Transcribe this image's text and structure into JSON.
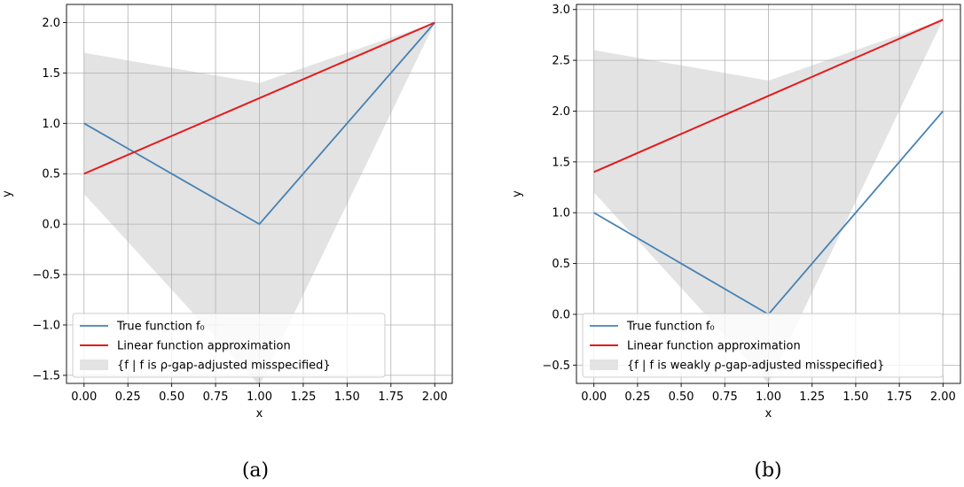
{
  "chart_data": [
    {
      "type": "line",
      "caption": "(a)",
      "xlabel": "x",
      "ylabel": "y",
      "xlim": [
        -0.1,
        2.1
      ],
      "ylim": [
        -1.58,
        2.18
      ],
      "xticks": [
        0.0,
        0.25,
        0.5,
        0.75,
        1.0,
        1.25,
        1.5,
        1.75,
        2.0
      ],
      "xtick_labels": [
        "0.00",
        "0.25",
        "0.50",
        "0.75",
        "1.00",
        "1.25",
        "1.50",
        "1.75",
        "2.00"
      ],
      "yticks": [
        -1.5,
        -1.0,
        -0.5,
        0.0,
        0.5,
        1.0,
        1.5,
        2.0
      ],
      "ytick_labels": [
        "−1.5",
        "−1.0",
        "−0.5",
        "0.0",
        "0.5",
        "1.0",
        "1.5",
        "2.0"
      ],
      "grid": true,
      "legend_position": "lower-left",
      "series": [
        {
          "name": "True function f₀",
          "color": "#4682b4",
          "x": [
            0,
            1,
            2
          ],
          "y": [
            1.0,
            0.0,
            2.0
          ]
        },
        {
          "name": "Linear function approximation",
          "color": "#e41a1c",
          "x": [
            0,
            2
          ],
          "y": [
            0.5,
            2.0
          ]
        }
      ],
      "band": {
        "name": "{f | f is ρ-gap-adjusted misspecified}",
        "color": "#e3e3e3",
        "x": [
          0,
          1,
          2
        ],
        "upper": [
          1.7,
          1.4,
          2.0
        ],
        "lower": [
          0.3,
          -1.6,
          2.0
        ]
      }
    },
    {
      "type": "line",
      "caption": "(b)",
      "xlabel": "x",
      "ylabel": "y",
      "xlim": [
        -0.1,
        2.1
      ],
      "ylim": [
        -0.68,
        3.05
      ],
      "xticks": [
        0.0,
        0.25,
        0.5,
        0.75,
        1.0,
        1.25,
        1.5,
        1.75,
        2.0
      ],
      "xtick_labels": [
        "0.00",
        "0.25",
        "0.50",
        "0.75",
        "1.00",
        "1.25",
        "1.50",
        "1.75",
        "2.00"
      ],
      "yticks": [
        -0.5,
        0.0,
        0.5,
        1.0,
        1.5,
        2.0,
        2.5,
        3.0
      ],
      "ytick_labels": [
        "−0.5",
        "0.0",
        "0.5",
        "1.0",
        "1.5",
        "2.0",
        "2.5",
        "3.0"
      ],
      "grid": true,
      "legend_position": "lower-left",
      "series": [
        {
          "name": "True function f₀",
          "color": "#4682b4",
          "x": [
            0,
            1,
            2
          ],
          "y": [
            1.0,
            0.0,
            2.0
          ]
        },
        {
          "name": "Linear function approximation",
          "color": "#e41a1c",
          "x": [
            0,
            2
          ],
          "y": [
            1.4,
            2.9
          ]
        }
      ],
      "band": {
        "name": "{f | f is weakly ρ-gap-adjusted misspecified}",
        "color": "#e3e3e3",
        "x": [
          0,
          1,
          2
        ],
        "upper": [
          2.6,
          2.3,
          2.9
        ],
        "lower": [
          1.2,
          -0.68,
          2.9
        ]
      }
    }
  ]
}
